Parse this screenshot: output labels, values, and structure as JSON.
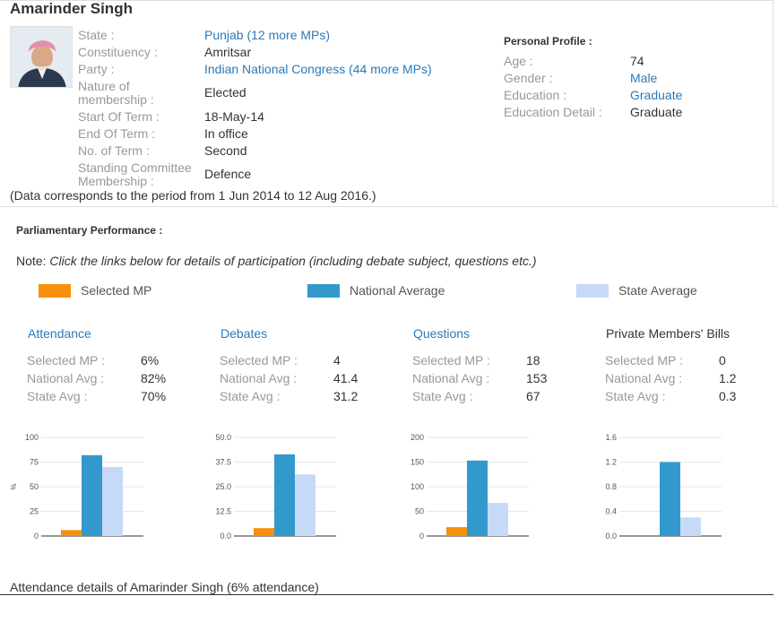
{
  "profile": {
    "name": "Amarinder Singh",
    "fields": [
      {
        "label": "State :",
        "value": "Punjab (12 more MPs)",
        "link": true
      },
      {
        "label": "Constituency :",
        "value": "Amritsar",
        "link": false
      },
      {
        "label": "Party :",
        "value": "Indian National Congress (44 more MPs)",
        "link": true
      },
      {
        "label": "Nature of membership :",
        "value": "Elected",
        "link": false
      },
      {
        "label": "Start Of Term :",
        "value": "18-May-14",
        "link": false
      },
      {
        "label": "End Of Term :",
        "value": "In office",
        "link": false
      },
      {
        "label": "No. of Term :",
        "value": "Second",
        "link": false
      },
      {
        "label": "Standing Committee Membership :",
        "value": "Defence",
        "link": false
      }
    ],
    "label_nature_l1": "Nature of",
    "label_nature_l2": "membership :",
    "label_sc_l1": "Standing Committee",
    "label_sc_l2": "Membership :",
    "period_note": "(Data corresponds to the period from 1 Jun 2014 to 12 Aug 2016.)"
  },
  "personal": {
    "title": "Personal Profile :",
    "fields": [
      {
        "label": "Age :",
        "value": "74",
        "link": false
      },
      {
        "label": "Gender :",
        "value": "Male",
        "link": true
      },
      {
        "label": "Education :",
        "value": "Graduate",
        "link": true
      },
      {
        "label": "Education Detail :",
        "value": "Graduate",
        "link": false
      }
    ]
  },
  "performance": {
    "title": "Parliamentary Performance :",
    "note_prefix": "Note: ",
    "note_text": "Click the links below for details of participation (including debate subject, questions etc.)",
    "legend": [
      {
        "label": "Selected MP",
        "color": "#f7900a"
      },
      {
        "label": "National Average",
        "color": "#3399cc"
      },
      {
        "label": "State Average",
        "color": "#c6daf8"
      }
    ],
    "blocks": [
      {
        "title": "Attendance",
        "link": true,
        "rows": [
          {
            "label": "Selected MP :",
            "value": "6%"
          },
          {
            "label": "National Avg :",
            "value": "82%"
          },
          {
            "label": "State Avg :",
            "value": "70%"
          }
        ]
      },
      {
        "title": "Debates",
        "link": true,
        "rows": [
          {
            "label": "Selected MP :",
            "value": "4"
          },
          {
            "label": "National Avg :",
            "value": "41.4"
          },
          {
            "label": "State Avg :",
            "value": "31.2"
          }
        ]
      },
      {
        "title": "Questions",
        "link": true,
        "rows": [
          {
            "label": "Selected MP :",
            "value": "18"
          },
          {
            "label": "National Avg :",
            "value": "153"
          },
          {
            "label": "State Avg :",
            "value": "67"
          }
        ]
      },
      {
        "title": "Private Members' Bills",
        "link": false,
        "rows": [
          {
            "label": "Selected MP :",
            "value": "0"
          },
          {
            "label": "National Avg :",
            "value": "1.2"
          },
          {
            "label": "State Avg :",
            "value": "0.3"
          }
        ]
      }
    ]
  },
  "chart_data": [
    {
      "type": "bar",
      "categories": [
        "Selected MP",
        "National Average",
        "State Average"
      ],
      "values": [
        6,
        82,
        70
      ],
      "ylim": [
        0,
        100
      ],
      "yticks": [
        "0",
        "25",
        "50",
        "75",
        "100"
      ],
      "ylabel": "%"
    },
    {
      "type": "bar",
      "categories": [
        "Selected MP",
        "National Average",
        "State Average"
      ],
      "values": [
        4,
        41.4,
        31.2
      ],
      "ylim": [
        0,
        50
      ],
      "yticks": [
        "0.0",
        "12.5",
        "25.0",
        "37.5",
        "50.0"
      ],
      "ylabel": ""
    },
    {
      "type": "bar",
      "categories": [
        "Selected MP",
        "National Average",
        "State Average"
      ],
      "values": [
        18,
        153,
        67
      ],
      "ylim": [
        0,
        200
      ],
      "yticks": [
        "0",
        "50",
        "100",
        "150",
        "200"
      ],
      "ylabel": ""
    },
    {
      "type": "bar",
      "categories": [
        "Selected MP",
        "National Average",
        "State Average"
      ],
      "values": [
        0,
        1.2,
        0.3
      ],
      "ylim": [
        0,
        1.6
      ],
      "yticks": [
        "0.0",
        "0.4",
        "0.8",
        "1.2",
        "1.6"
      ],
      "ylabel": ""
    }
  ],
  "footer": {
    "attendance_details": "Attendance details of Amarinder Singh (6% attendance)"
  }
}
